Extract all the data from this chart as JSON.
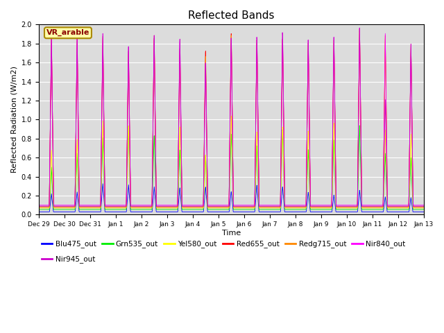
{
  "title": "Reflected Bands",
  "xlabel": "Time",
  "ylabel": "Reflected Radiation (W/m2)",
  "ylim": [
    0.0,
    2.0
  ],
  "annotation_text": "VR_arable",
  "background_color": "#dcdcdc",
  "series": [
    {
      "name": "Blu475_out",
      "color": "#0000ff"
    },
    {
      "name": "Grn535_out",
      "color": "#00ee00"
    },
    {
      "name": "Yel580_out",
      "color": "#ffff00"
    },
    {
      "name": "Red655_out",
      "color": "#ff0000"
    },
    {
      "name": "Redg715_out",
      "color": "#ff8800"
    },
    {
      "name": "Nir840_out",
      "color": "#ff00ff"
    },
    {
      "name": "Nir945_out",
      "color": "#cc00cc"
    }
  ],
  "xtick_labels": [
    "Dec 29",
    "Dec 30",
    "Dec 31",
    "Jan 1",
    "Jan 2",
    "Jan 3",
    "Jan 4",
    "Jan 5",
    "Jan 6",
    "Jan 7",
    "Jan 8",
    "Jan 9",
    "Jan 10",
    "Jan 11",
    "Jan 12",
    "Jan 13"
  ],
  "n_days": 15,
  "samples_per_day": 144,
  "baselines": [
    0.03,
    0.055,
    0.07,
    0.085,
    0.075,
    0.1,
    0.09
  ],
  "blue_peaks": [
    0.22,
    0.24,
    0.33,
    0.32,
    0.3,
    0.29,
    0.3,
    0.25,
    0.32,
    0.3,
    0.24,
    0.21,
    0.26,
    0.19,
    0.18
  ],
  "grn_peaks": [
    0.5,
    0.65,
    0.82,
    0.95,
    0.85,
    0.7,
    0.65,
    0.88,
    0.75,
    0.92,
    0.7,
    0.8,
    0.95,
    0.65,
    0.6
  ],
  "yel_peaks": [
    0.68,
    0.8,
    1.0,
    0.95,
    1.93,
    0.95,
    0.65,
    1.08,
    0.9,
    0.95,
    0.9,
    0.98,
    1.93,
    0.9,
    0.85
  ],
  "red_peaks": [
    1.9,
    1.87,
    1.9,
    1.75,
    1.9,
    1.8,
    1.78,
    1.98,
    1.9,
    1.9,
    1.85,
    1.87,
    1.98,
    1.9,
    1.8
  ],
  "redg_peaks": [
    1.88,
    1.84,
    1.88,
    1.72,
    1.88,
    1.75,
    1.72,
    1.96,
    1.87,
    1.88,
    1.82,
    1.84,
    1.96,
    1.87,
    1.78
  ],
  "nir840_peaks": [
    1.91,
    1.92,
    1.93,
    1.8,
    1.93,
    1.9,
    1.65,
    1.93,
    1.93,
    1.97,
    1.88,
    1.9,
    1.99,
    1.92,
    1.8
  ],
  "nir945_peaks": [
    1.91,
    1.92,
    1.93,
    1.8,
    1.93,
    1.9,
    1.65,
    1.93,
    1.93,
    1.97,
    1.88,
    1.9,
    1.99,
    1.22,
    1.8
  ]
}
